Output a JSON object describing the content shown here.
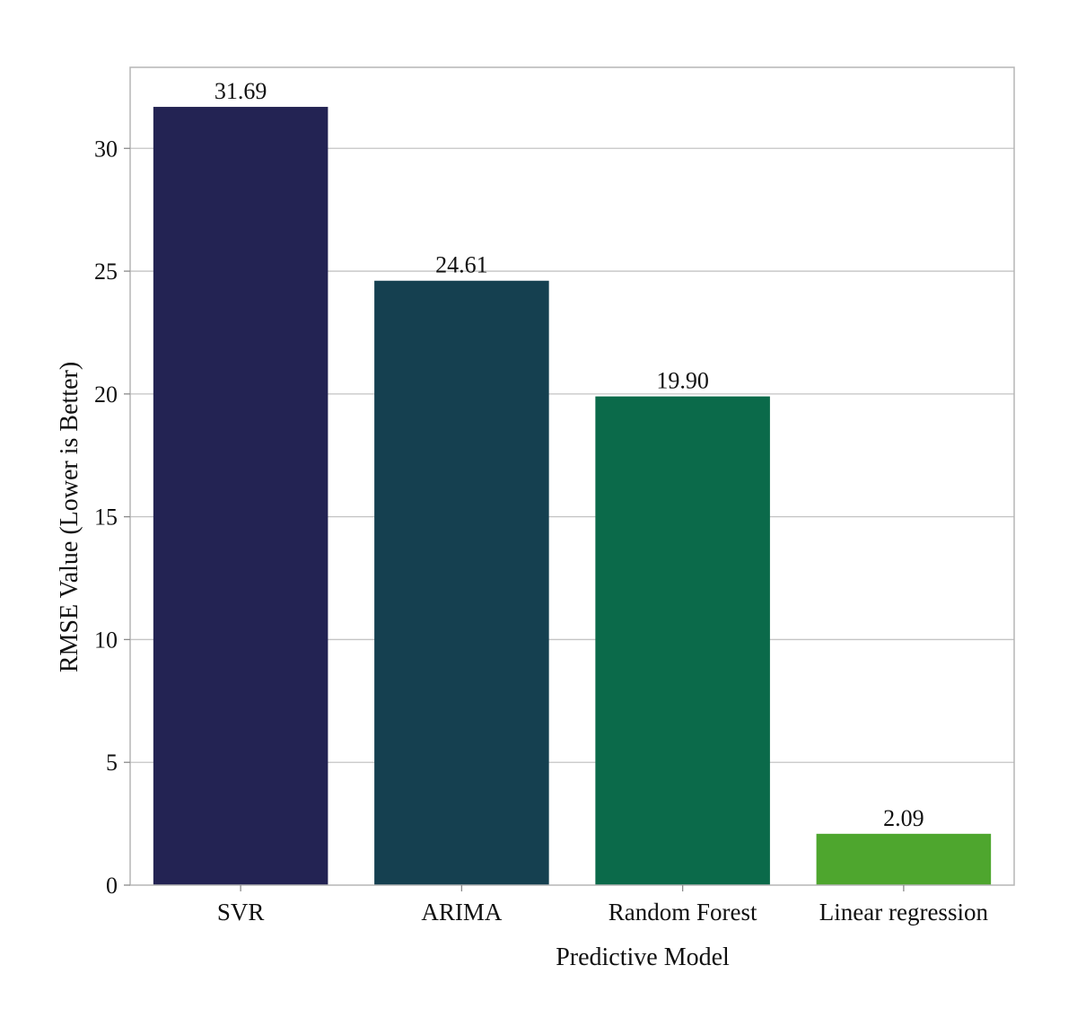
{
  "chart_data": {
    "type": "bar",
    "title": "",
    "xlabel": "Predictive Model",
    "ylabel": "RMSE Value (Lower is Better)",
    "categories": [
      "SVR",
      "ARIMA",
      "Random Forest",
      "Linear regression"
    ],
    "values": [
      31.69,
      24.61,
      19.9,
      2.09
    ],
    "value_labels": [
      "31.69",
      "24.61",
      "19.90",
      "2.09"
    ],
    "colors": [
      "#232353",
      "#154050",
      "#0b6a4a",
      "#4ea62e"
    ],
    "ylim": [
      0,
      33.3
    ],
    "yticks": [
      0,
      5,
      10,
      15,
      20,
      25,
      30
    ],
    "ytick_labels": [
      "0",
      "5",
      "10",
      "15",
      "20",
      "25",
      "30"
    ],
    "grid": true
  }
}
